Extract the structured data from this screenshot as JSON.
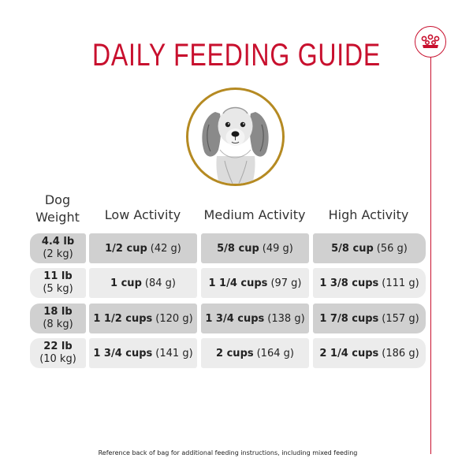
{
  "title": "DAILY FEEDING GUIDE",
  "brand": {
    "logo_icon": "crown-icon",
    "accent_color": "#c8102e",
    "ring_color": "#b58a22"
  },
  "table": {
    "headers": {
      "weight": "Dog Weight",
      "low": "Low Activity",
      "medium": "Medium Activity",
      "high": "High Activity"
    },
    "rows": [
      {
        "weight_lb": "4.4 lb",
        "weight_kg": "(2 kg)",
        "low_cups": "1/2 cup",
        "low_grams": "(42 g)",
        "medium_cups": "5/8 cup",
        "medium_grams": "(49 g)",
        "high_cups": "5/8 cup",
        "high_grams": "(56 g)"
      },
      {
        "weight_lb": "11 lb",
        "weight_kg": "(5 kg)",
        "low_cups": "1 cup",
        "low_grams": "(84 g)",
        "medium_cups": "1 1/4 cups",
        "medium_grams": "(97 g)",
        "high_cups": "1 3/8 cups",
        "high_grams": "(111 g)"
      },
      {
        "weight_lb": "18 lb",
        "weight_kg": "(8 kg)",
        "low_cups": "1 1/2 cups",
        "low_grams": "(120 g)",
        "medium_cups": "1 3/4 cups",
        "medium_grams": "(138 g)",
        "high_cups": "1 7/8 cups",
        "high_grams": "(157 g)"
      },
      {
        "weight_lb": "22 lb",
        "weight_kg": "(10 kg)",
        "low_cups": "1 3/4 cups",
        "low_grams": "(141 g)",
        "medium_cups": "2 cups",
        "medium_grams": "(164 g)",
        "high_cups": "2 1/4 cups",
        "high_grams": "(186 g)"
      }
    ]
  },
  "footnote": "Reference back of bag for additional feeding instructions, including mixed feeding"
}
